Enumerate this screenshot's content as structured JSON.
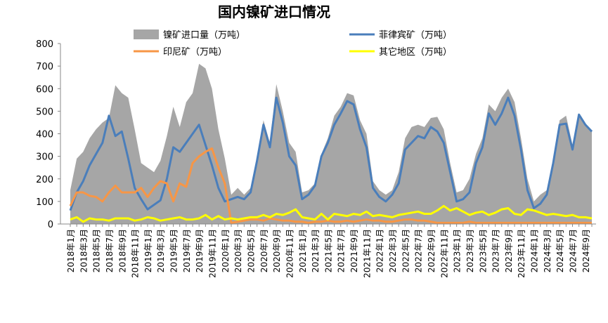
{
  "chart_data": {
    "type": "area_line",
    "title": "国内镍矿进口情况",
    "categories": [
      "2018年1月",
      null,
      "2018年3月",
      null,
      "2018年5月",
      null,
      "2018年7月",
      null,
      "2018年9月",
      null,
      "2018年11月",
      null,
      "2019年1月",
      null,
      "2019年3月",
      null,
      "2019年5月",
      null,
      "2019年7月",
      null,
      "2019年9月",
      null,
      "2019年11月",
      null,
      "2020年1月",
      null,
      "2020年3月",
      null,
      "2020年5月",
      null,
      "2020年7月",
      null,
      "2020年9月",
      null,
      "2020年11月",
      null,
      "2021年1月",
      null,
      "2021年3月",
      null,
      "2021年5月",
      null,
      "2021年7月",
      null,
      "2021年9月",
      null,
      "2021年11月",
      null,
      "2022年1月",
      null,
      "2022年3月",
      null,
      "2022年5月",
      null,
      "2022年7月",
      null,
      "2022年9月",
      null,
      "2022年11月",
      null,
      "2023年1月",
      null,
      "2023年3月",
      null,
      "2023年5月",
      null,
      "2023年7月",
      null,
      "2023年9月",
      null,
      "2023年11月",
      null,
      "2024年1月",
      null,
      "2024年3月",
      null,
      "2024年5月",
      null,
      "2024年7月",
      null,
      "2024年9月",
      null
    ],
    "series": [
      {
        "name": "镍矿进口量（万吨）",
        "kind": "area",
        "color": "#a6a6a6",
        "values": [
          150,
          290,
          320,
          380,
          420,
          450,
          470,
          615,
          580,
          560,
          420,
          270,
          250,
          230,
          280,
          390,
          520,
          430,
          540,
          580,
          710,
          690,
          600,
          420,
          290,
          130,
          160,
          130,
          160,
          300,
          460,
          360,
          620,
          500,
          360,
          320,
          140,
          150,
          180,
          310,
          380,
          480,
          520,
          580,
          570,
          460,
          400,
          190,
          150,
          130,
          150,
          230,
          380,
          430,
          440,
          430,
          470,
          475,
          420,
          270,
          140,
          150,
          200,
          310,
          380,
          530,
          500,
          560,
          600,
          540,
          380,
          200,
          100,
          130,
          150,
          280,
          460,
          480,
          350,
          480,
          440,
          410
        ]
      },
      {
        "name": "菲律宾矿（万吨）",
        "kind": "line",
        "color": "#4a7ebb",
        "values": [
          60,
          140,
          190,
          260,
          310,
          360,
          480,
          390,
          410,
          290,
          160,
          110,
          65,
          85,
          105,
          200,
          340,
          320,
          360,
          400,
          440,
          350,
          260,
          160,
          100,
          110,
          120,
          110,
          140,
          280,
          440,
          340,
          560,
          450,
          300,
          260,
          110,
          130,
          170,
          300,
          360,
          440,
          490,
          545,
          530,
          420,
          340,
          160,
          120,
          100,
          130,
          180,
          330,
          360,
          390,
          380,
          430,
          410,
          360,
          230,
          100,
          110,
          140,
          270,
          340,
          490,
          440,
          490,
          560,
          480,
          330,
          150,
          70,
          90,
          130,
          270,
          440,
          445,
          330,
          485,
          440,
          410
        ]
      },
      {
        "name": "印尼矿（万吨）",
        "kind": "line",
        "color": "#f79646",
        "values": [
          80,
          140,
          140,
          125,
          120,
          100,
          140,
          170,
          140,
          140,
          140,
          160,
          120,
          160,
          190,
          180,
          100,
          180,
          165,
          270,
          300,
          320,
          335,
          250,
          180,
          5,
          10,
          15,
          20,
          20,
          15,
          25,
          20,
          15,
          15,
          10,
          10,
          5,
          10,
          10,
          15,
          10,
          10,
          15,
          10,
          15,
          20,
          15,
          15,
          10,
          10,
          15,
          20,
          20,
          15,
          15,
          10,
          5,
          5,
          5,
          5,
          5,
          10,
          5,
          5,
          5,
          5,
          5,
          5,
          5,
          5,
          5,
          5,
          5,
          5,
          5,
          5,
          5,
          5,
          5,
          5,
          5
        ]
      },
      {
        "name": "其它地区（万吨）",
        "kind": "line",
        "color": "#ffff00",
        "values": [
          20,
          30,
          10,
          25,
          20,
          20,
          15,
          25,
          25,
          25,
          15,
          20,
          30,
          25,
          15,
          20,
          25,
          30,
          20,
          20,
          25,
          40,
          20,
          35,
          20,
          25,
          20,
          25,
          30,
          30,
          40,
          30,
          45,
          40,
          50,
          65,
          30,
          25,
          20,
          45,
          20,
          45,
          40,
          35,
          45,
          40,
          55,
          35,
          40,
          35,
          30,
          40,
          45,
          50,
          55,
          45,
          45,
          60,
          80,
          60,
          70,
          55,
          40,
          50,
          55,
          40,
          50,
          65,
          70,
          45,
          40,
          65,
          60,
          50,
          40,
          45,
          40,
          35,
          40,
          30,
          30,
          25
        ]
      }
    ],
    "ylim": [
      0,
      800
    ],
    "yticks": [
      0,
      100,
      200,
      300,
      400,
      500,
      600,
      700,
      800
    ]
  }
}
